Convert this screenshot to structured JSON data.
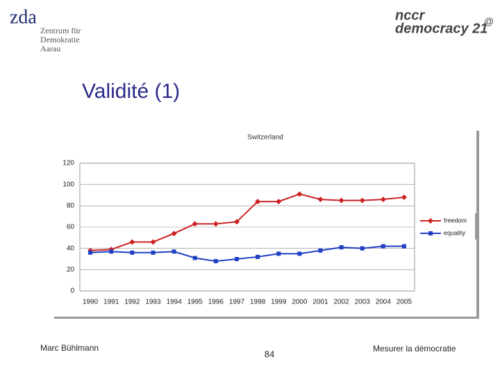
{
  "header": {
    "left_logo": {
      "mark": "zda",
      "lines": [
        "Zentrum für",
        "Demokratie",
        "Aarau"
      ]
    },
    "right_logo": {
      "lines": [
        "nccr",
        "democracy 21"
      ],
      "badge": "@"
    }
  },
  "slide_title": "Validité (1)",
  "chart_data": {
    "type": "line",
    "title": "Switzerland",
    "categories": [
      "1990",
      "1991",
      "1992",
      "1993",
      "1994",
      "1995",
      "1996",
      "1997",
      "1998",
      "1999",
      "2000",
      "2001",
      "2002",
      "2003",
      "2004",
      "2005"
    ],
    "series": [
      {
        "name": "freedom",
        "color": "#cc2020",
        "marker": "diamond",
        "values": [
          38,
          39,
          46,
          46,
          54,
          63,
          63,
          65,
          84,
          84,
          91,
          86,
          85,
          85,
          86,
          88
        ]
      },
      {
        "name": "equality",
        "color": "#1f3fc4",
        "marker": "square",
        "values": [
          36,
          37,
          36,
          36,
          37,
          31,
          28,
          30,
          32,
          35,
          35,
          38,
          41,
          40,
          42,
          42
        ]
      }
    ],
    "ylim": [
      0,
      120
    ],
    "yticks": [
      0,
      20,
      40,
      60,
      80,
      100,
      120
    ],
    "grid": true,
    "legend": "right"
  },
  "footer": {
    "author": "Marc Bühlmann",
    "page": "84",
    "topic": "Mesurer la démocratie"
  }
}
